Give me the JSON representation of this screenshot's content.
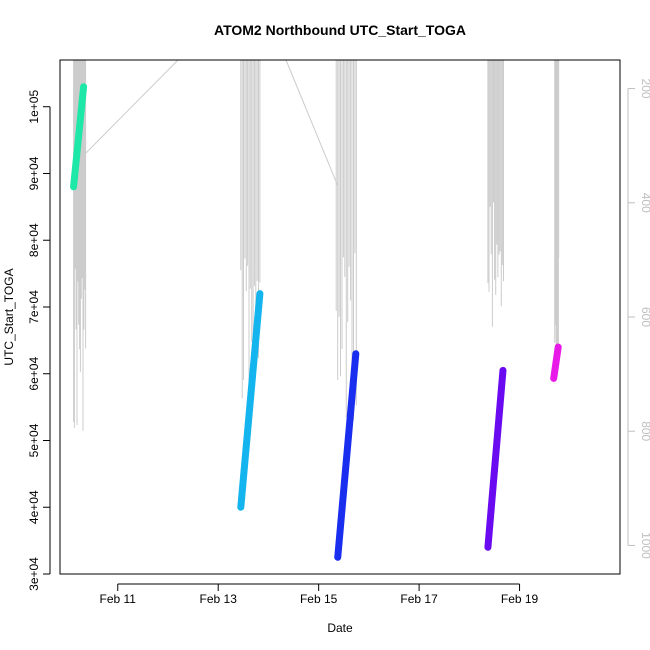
{
  "chart_data": {
    "type": "line",
    "title": "ATOM2 Northbound UTC_Start_TOGA",
    "xlabel": "Date",
    "ylabel": "UTC_Start_TOGA",
    "x_ticks": [
      "Feb 11",
      "Feb 13",
      "Feb 15",
      "Feb 17",
      "Feb 19"
    ],
    "y_ticks": [
      "3e+04",
      "4e+04",
      "5e+04",
      "6e+04",
      "7e+04",
      "8e+04",
      "9e+04",
      "1e+05"
    ],
    "y2_ticks": [
      "200",
      "400",
      "600",
      "800",
      "1000"
    ],
    "xlim_days": [
      9.85,
      21.0
    ],
    "ylim": [
      30000,
      107000
    ],
    "y2lim": [
      1050,
      150
    ],
    "grid": false,
    "colors": {
      "altitude_line": "#cccccc",
      "right_axis": "#bfbfbf"
    },
    "series": [
      {
        "color": "#1ee8a8",
        "start": [
          "Feb 10",
          88000
        ],
        "end": [
          "Feb 10",
          103000
        ],
        "day_start": 10.12,
        "day_end": 10.32
      },
      {
        "color": "#14b4ee",
        "start": [
          "Feb 13",
          40000
        ],
        "end": [
          "Feb 13",
          72000
        ],
        "day_start": 13.45,
        "day_end": 13.83
      },
      {
        "color": "#1a2ef0",
        "start": [
          "Feb 15",
          32500
        ],
        "end": [
          "Feb 15",
          63000
        ],
        "day_start": 15.38,
        "day_end": 15.74
      },
      {
        "color": "#6a0af0",
        "start": [
          "Feb 18",
          34000
        ],
        "end": [
          "Feb 18",
          60500
        ],
        "day_start": 18.37,
        "day_end": 18.67
      },
      {
        "color": "#e81ae8",
        "start": [
          "Feb 19",
          59300
        ],
        "end": [
          "Feb 19",
          64000
        ],
        "day_start": 19.68,
        "day_end": 19.77
      }
    ],
    "altitude_profiles": [
      {
        "day_range": [
          10.12,
          10.36
        ],
        "min_depth": 92,
        "max_depth": 820
      },
      {
        "day_range": [
          13.45,
          13.83
        ],
        "min_depth": 92,
        "max_depth": 795
      },
      {
        "day_range": [
          15.35,
          15.75
        ],
        "min_depth": 92,
        "max_depth": 790
      },
      {
        "day_range": [
          18.37,
          18.68
        ],
        "min_depth": 92,
        "max_depth": 640
      },
      {
        "day_range": [
          19.7,
          19.78
        ],
        "min_depth": 92,
        "max_depth": 690
      }
    ],
    "altitude_connectors": [
      {
        "from": [
          10.32,
          317
        ],
        "to": [
          12.2,
          92
        ]
      },
      {
        "from": [
          14.35,
          92
        ],
        "to": [
          15.38,
          370
        ]
      }
    ]
  }
}
